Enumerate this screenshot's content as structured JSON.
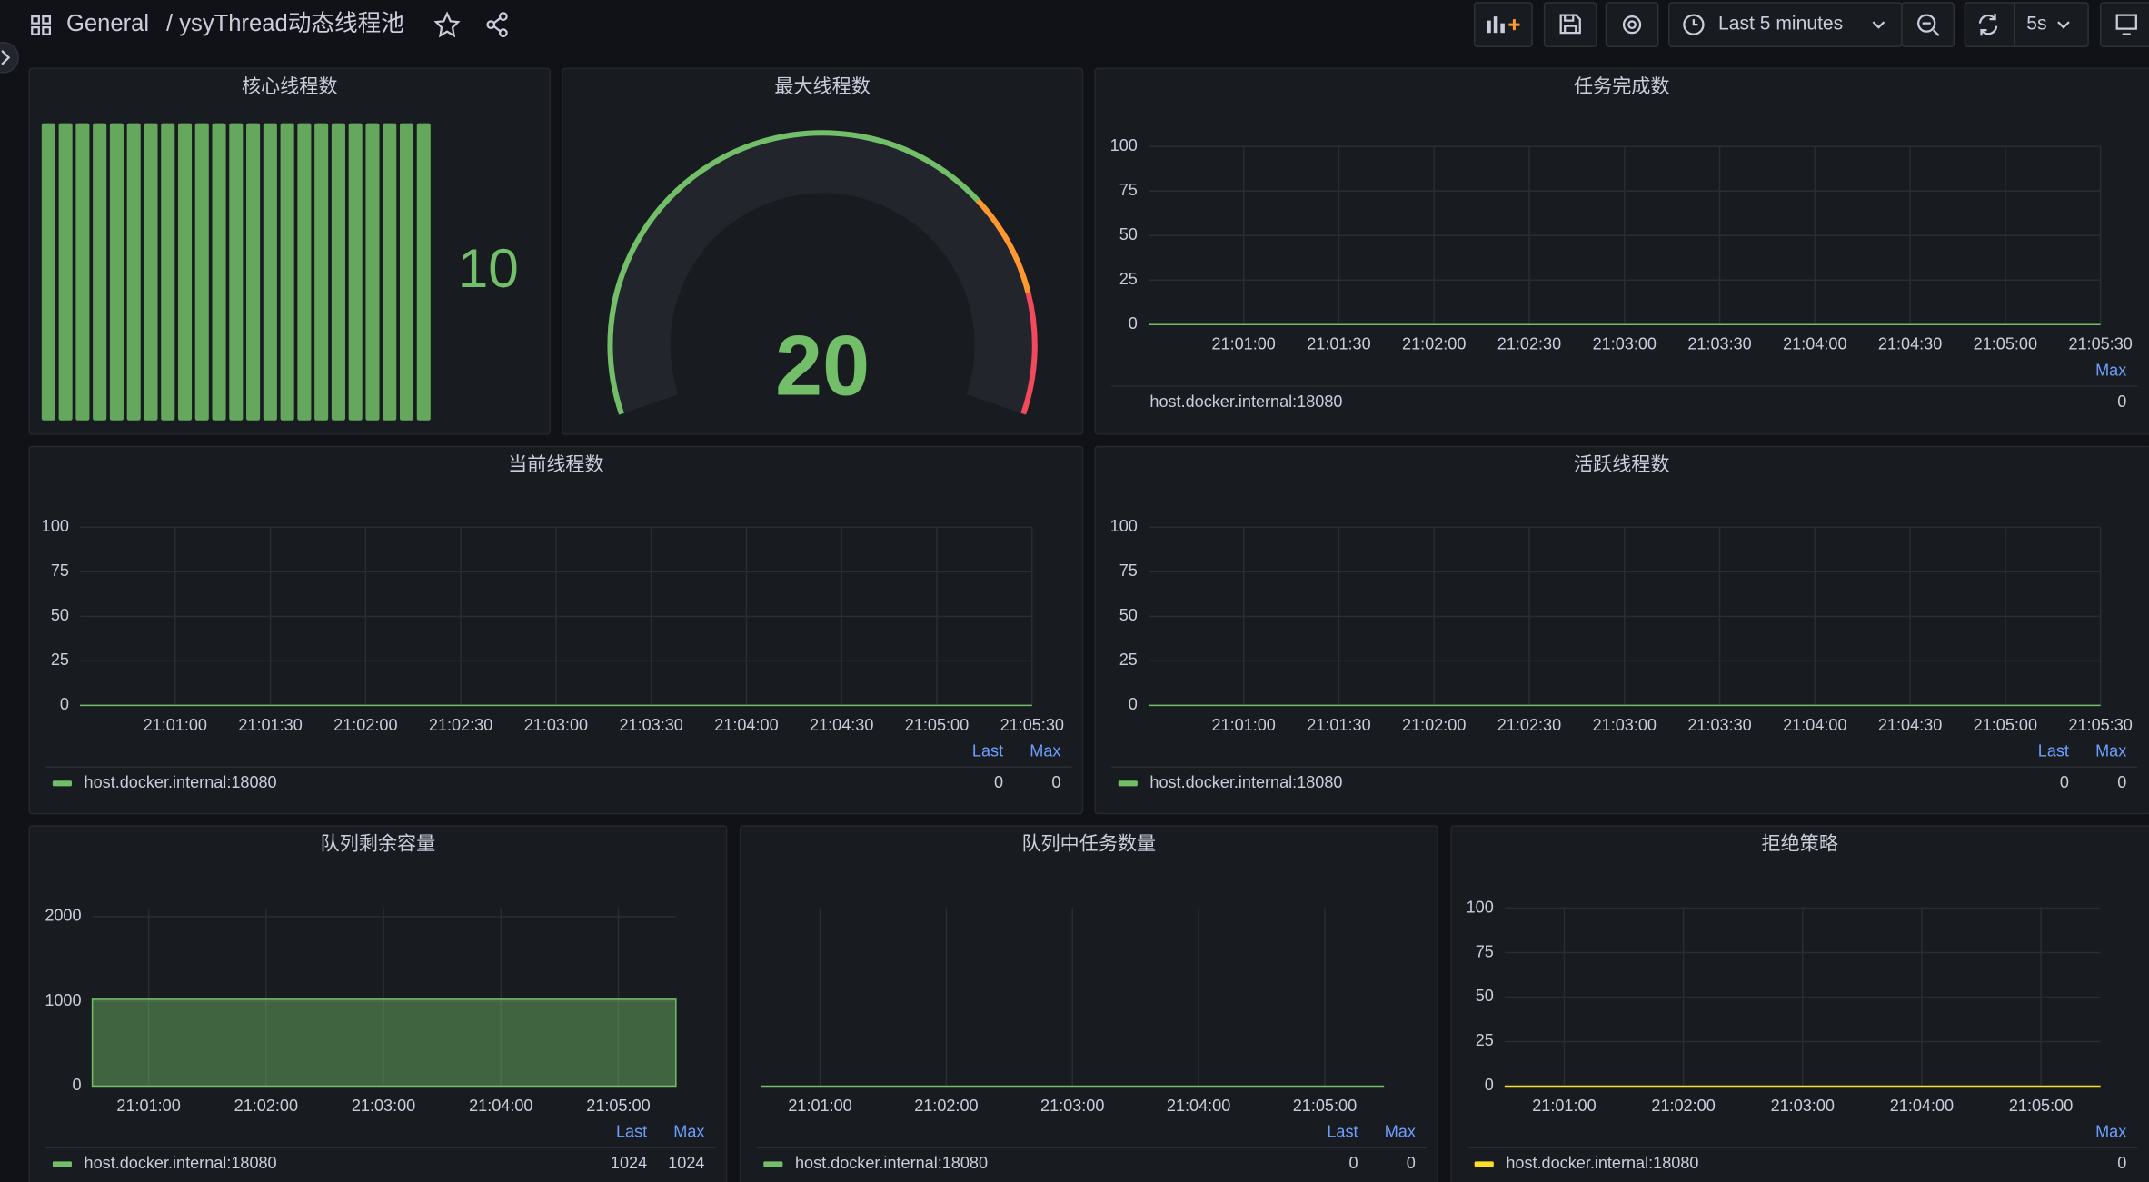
{
  "header": {
    "home": "General",
    "title": "/ ysyThread动态线程池",
    "time_range": "Last 5 minutes",
    "refresh_interval": "5s"
  },
  "panels": [
    {
      "title": "核心线程数",
      "type": "bargauge",
      "value": 10,
      "color": "#73bf69"
    },
    {
      "title": "最大线程数",
      "type": "gauge",
      "value": 20,
      "color": "#73bf69"
    },
    {
      "title": "任务完成数",
      "type": "line",
      "xticks": [
        "21:01:00",
        "21:01:30",
        "21:02:00",
        "21:02:30",
        "21:03:00",
        "21:03:30",
        "21:04:00",
        "21:04:30",
        "21:05:00",
        "21:05:30"
      ],
      "ylim": [
        0,
        100
      ],
      "yticks": [
        0,
        25,
        50,
        75,
        100
      ],
      "legend_columns": [
        "Max"
      ],
      "series": [
        {
          "name": "host.docker.internal:18080",
          "max": 0
        }
      ]
    },
    {
      "title": "当前线程数",
      "type": "line",
      "xticks": [
        "21:01:00",
        "21:01:30",
        "21:02:00",
        "21:02:30",
        "21:03:00",
        "21:03:30",
        "21:04:00",
        "21:04:30",
        "21:05:00",
        "21:05:30"
      ],
      "ylim": [
        0,
        100
      ],
      "yticks": [
        0,
        25,
        50,
        75,
        100
      ],
      "legend_columns": [
        "Last",
        "Max"
      ],
      "series": [
        {
          "name": "host.docker.internal:18080",
          "color": "#73bf69",
          "last": 0,
          "max": 0
        }
      ]
    },
    {
      "title": "活跃线程数",
      "type": "line",
      "xticks": [
        "21:01:00",
        "21:01:30",
        "21:02:00",
        "21:02:30",
        "21:03:00",
        "21:03:30",
        "21:04:00",
        "21:04:30",
        "21:05:00",
        "21:05:30"
      ],
      "ylim": [
        0,
        100
      ],
      "yticks": [
        0,
        25,
        50,
        75,
        100
      ],
      "legend_columns": [
        "Last",
        "Max"
      ],
      "series": [
        {
          "name": "host.docker.internal:18080",
          "color": "#73bf69",
          "last": 0,
          "max": 0
        }
      ]
    },
    {
      "title": "队列剩余容量",
      "type": "area",
      "xticks": [
        "21:01:00",
        "21:02:00",
        "21:03:00",
        "21:04:00",
        "21:05:00"
      ],
      "ylim": [
        0,
        2100
      ],
      "yticks": [
        0,
        1000,
        2000
      ],
      "legend_columns": [
        "Last",
        "Max"
      ],
      "series": [
        {
          "name": "host.docker.internal:18080",
          "color": "#73bf69",
          "last": 1024,
          "max": 1024
        }
      ]
    },
    {
      "title": "队列中任务数量",
      "type": "line",
      "xticks": [
        "21:01:00",
        "21:02:00",
        "21:03:00",
        "21:04:00",
        "21:05:00"
      ],
      "legend_columns": [
        "Last",
        "Max"
      ],
      "series": [
        {
          "name": "host.docker.internal:18080",
          "color": "#73bf69",
          "last": 0,
          "max": 0
        }
      ]
    },
    {
      "title": "拒绝策略",
      "type": "line",
      "xticks": [
        "21:01:00",
        "21:02:00",
        "21:03:00",
        "21:04:00",
        "21:05:00"
      ],
      "ylim": [
        0,
        100
      ],
      "yticks": [
        0,
        25,
        50,
        75,
        100
      ],
      "legend_columns": [
        "Max"
      ],
      "series": [
        {
          "name": "host.docker.internal:18080",
          "color": "#fade2a",
          "max": 0
        }
      ]
    }
  ]
}
